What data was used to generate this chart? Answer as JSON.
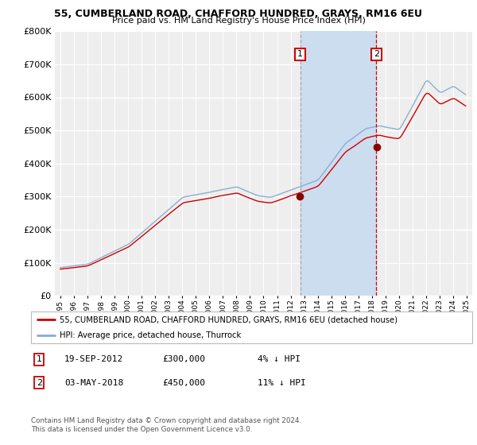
{
  "title": "55, CUMBERLAND ROAD, CHAFFORD HUNDRED, GRAYS, RM16 6EU",
  "subtitle": "Price paid vs. HM Land Registry's House Price Index (HPI)",
  "legend_line1": "55, CUMBERLAND ROAD, CHAFFORD HUNDRED, GRAYS, RM16 6EU (detached house)",
  "legend_line2": "HPI: Average price, detached house, Thurrock",
  "transaction1_date": "19-SEP-2012",
  "transaction1_price": 300000,
  "transaction1_note": "4% ↓ HPI",
  "transaction2_date": "03-MAY-2018",
  "transaction2_price": 450000,
  "transaction2_note": "11% ↓ HPI",
  "copyright": "Contains HM Land Registry data © Crown copyright and database right 2024.\nThis data is licensed under the Open Government Licence v3.0.",
  "red_color": "#cc0000",
  "blue_color": "#88aacc",
  "bg_color": "#ffffff",
  "plot_bg": "#eeeeee",
  "shade_color": "#ccddf0",
  "ylim": [
    0,
    800000
  ],
  "t1_year": 2012.7,
  "t2_year": 2018.33
}
